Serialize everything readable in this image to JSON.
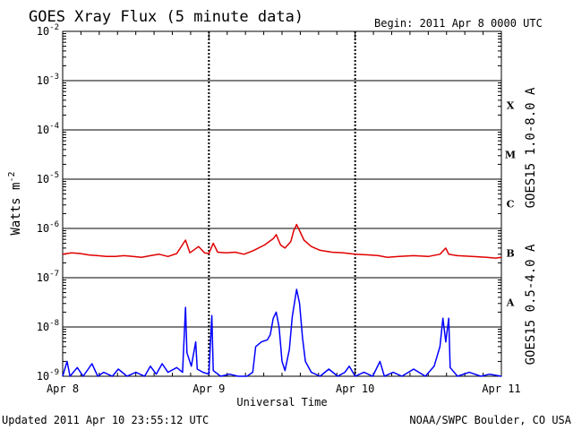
{
  "title": "GOES Xray Flux (5 minute data)",
  "begin": "Begin:  2011 Apr 8 0000 UTC",
  "updated": "Updated 2011 Apr 10 23:55:12 UTC",
  "credit": "NOAA/SWPC Boulder, CO USA",
  "colors": {
    "long": "#e00000",
    "short": "#0000ff",
    "axis": "#000000"
  },
  "chart_data": {
    "type": "line",
    "xlabel": "Universal Time",
    "ylabel": "Watts m",
    "ylabel_superscript": "-2",
    "yscale": "log",
    "ylim": [
      1e-09,
      0.01
    ],
    "xlim": [
      0,
      3
    ],
    "grid": "horizontal lines at each decade; dashed vertical lines at day boundaries",
    "x_ticks": [
      {
        "x": 0,
        "label": "Apr 8"
      },
      {
        "x": 1,
        "label": "Apr 9"
      },
      {
        "x": 2,
        "label": "Apr 10"
      },
      {
        "x": 3,
        "label": "Apr 11"
      }
    ],
    "y_ticks": [
      {
        "exp": -9,
        "label": "10",
        "sup": "-9"
      },
      {
        "exp": -8,
        "label": "10",
        "sup": "-8"
      },
      {
        "exp": -7,
        "label": "10",
        "sup": "-7"
      },
      {
        "exp": -6,
        "label": "10",
        "sup": "-6"
      },
      {
        "exp": -5,
        "label": "10",
        "sup": "-5"
      },
      {
        "exp": -4,
        "label": "10",
        "sup": "-4"
      },
      {
        "exp": -3,
        "label": "10",
        "sup": "-3"
      },
      {
        "exp": -2,
        "label": "10",
        "sup": "-2"
      }
    ],
    "flare_classes": [
      {
        "label": "A",
        "exp": -7.5
      },
      {
        "label": "B",
        "exp": -6.5
      },
      {
        "label": "C",
        "exp": -5.5
      },
      {
        "label": "M",
        "exp": -4.5
      },
      {
        "label": "X",
        "exp": -3.5
      }
    ],
    "legend_placement": "right, vertical",
    "series": [
      {
        "name": "GOES15 1.0-8.0 A",
        "color": "#e00000",
        "points": [
          [
            0.0,
            3e-07
          ],
          [
            0.06,
            3.2e-07
          ],
          [
            0.12,
            3.1e-07
          ],
          [
            0.18,
            2.9e-07
          ],
          [
            0.24,
            2.8e-07
          ],
          [
            0.3,
            2.7e-07
          ],
          [
            0.36,
            2.7e-07
          ],
          [
            0.42,
            2.8e-07
          ],
          [
            0.48,
            2.7e-07
          ],
          [
            0.54,
            2.6e-07
          ],
          [
            0.6,
            2.8e-07
          ],
          [
            0.66,
            3e-07
          ],
          [
            0.72,
            2.7e-07
          ],
          [
            0.78,
            3.1e-07
          ],
          [
            0.84,
            5.8e-07
          ],
          [
            0.87,
            3.2e-07
          ],
          [
            0.93,
            4.3e-07
          ],
          [
            0.97,
            3.2e-07
          ],
          [
            1.0,
            3.1e-07
          ],
          [
            1.03,
            5e-07
          ],
          [
            1.06,
            3.3e-07
          ],
          [
            1.12,
            3.2e-07
          ],
          [
            1.18,
            3.3e-07
          ],
          [
            1.24,
            3e-07
          ],
          [
            1.3,
            3.5e-07
          ],
          [
            1.38,
            4.6e-07
          ],
          [
            1.44,
            6.2e-07
          ],
          [
            1.46,
            7.5e-07
          ],
          [
            1.49,
            4.6e-07
          ],
          [
            1.52,
            4e-07
          ],
          [
            1.56,
            5.4e-07
          ],
          [
            1.58,
            9e-07
          ],
          [
            1.6,
            1.2e-06
          ],
          [
            1.62,
            9e-07
          ],
          [
            1.65,
            5.8e-07
          ],
          [
            1.7,
            4.3e-07
          ],
          [
            1.76,
            3.6e-07
          ],
          [
            1.84,
            3.3e-07
          ],
          [
            1.92,
            3.2e-07
          ],
          [
            2.0,
            3e-07
          ],
          [
            2.1,
            2.9e-07
          ],
          [
            2.16,
            2.8e-07
          ],
          [
            2.22,
            2.6e-07
          ],
          [
            2.3,
            2.7e-07
          ],
          [
            2.4,
            2.8e-07
          ],
          [
            2.5,
            2.7e-07
          ],
          [
            2.58,
            3e-07
          ],
          [
            2.62,
            4e-07
          ],
          [
            2.64,
            3e-07
          ],
          [
            2.7,
            2.8e-07
          ],
          [
            2.8,
            2.7e-07
          ],
          [
            2.9,
            2.6e-07
          ],
          [
            2.96,
            2.5e-07
          ],
          [
            3.0,
            2.6e-07
          ]
        ]
      },
      {
        "name": "GOES15 0.5-4.0 A",
        "color": "#0000ff",
        "points": [
          [
            0.0,
            1e-09
          ],
          [
            0.03,
            2e-09
          ],
          [
            0.05,
            1e-09
          ],
          [
            0.1,
            1.5e-09
          ],
          [
            0.14,
            1e-09
          ],
          [
            0.2,
            1.8e-09
          ],
          [
            0.24,
            1e-09
          ],
          [
            0.28,
            1.2e-09
          ],
          [
            0.34,
            1e-09
          ],
          [
            0.38,
            1.4e-09
          ],
          [
            0.44,
            1e-09
          ],
          [
            0.5,
            1.2e-09
          ],
          [
            0.56,
            1e-09
          ],
          [
            0.6,
            1.6e-09
          ],
          [
            0.64,
            1.1e-09
          ],
          [
            0.68,
            1.8e-09
          ],
          [
            0.72,
            1.2e-09
          ],
          [
            0.78,
            1.5e-09
          ],
          [
            0.82,
            1.2e-09
          ],
          [
            0.84,
            2.5e-08
          ],
          [
            0.85,
            3e-09
          ],
          [
            0.88,
            1.6e-09
          ],
          [
            0.91,
            5e-09
          ],
          [
            0.92,
            1.4e-09
          ],
          [
            0.96,
            1.2e-09
          ],
          [
            1.0,
            1.1e-09
          ],
          [
            1.02,
            1.7e-08
          ],
          [
            1.03,
            1.3e-09
          ],
          [
            1.08,
            1e-09
          ],
          [
            1.14,
            1.1e-09
          ],
          [
            1.2,
            1e-09
          ],
          [
            1.26,
            1e-09
          ],
          [
            1.3,
            1.2e-09
          ],
          [
            1.32,
            4e-09
          ],
          [
            1.36,
            5e-09
          ],
          [
            1.4,
            5.5e-09
          ],
          [
            1.42,
            7e-09
          ],
          [
            1.44,
            1.5e-08
          ],
          [
            1.46,
            2e-08
          ],
          [
            1.48,
            1e-08
          ],
          [
            1.5,
            2e-09
          ],
          [
            1.52,
            1.3e-09
          ],
          [
            1.55,
            3.5e-09
          ],
          [
            1.57,
            1.6e-08
          ],
          [
            1.59,
            3.8e-08
          ],
          [
            1.6,
            5.8e-08
          ],
          [
            1.62,
            3e-08
          ],
          [
            1.64,
            6e-09
          ],
          [
            1.66,
            2e-09
          ],
          [
            1.7,
            1.2e-09
          ],
          [
            1.76,
            1e-09
          ],
          [
            1.82,
            1.4e-09
          ],
          [
            1.88,
            1e-09
          ],
          [
            1.93,
            1.2e-09
          ],
          [
            1.96,
            1.6e-09
          ],
          [
            2.0,
            1e-09
          ],
          [
            2.06,
            1.2e-09
          ],
          [
            2.12,
            1e-09
          ],
          [
            2.17,
            2e-09
          ],
          [
            2.2,
            1e-09
          ],
          [
            2.26,
            1.2e-09
          ],
          [
            2.32,
            1e-09
          ],
          [
            2.4,
            1.4e-09
          ],
          [
            2.48,
            1e-09
          ],
          [
            2.54,
            1.6e-09
          ],
          [
            2.58,
            4e-09
          ],
          [
            2.6,
            1.5e-08
          ],
          [
            2.62,
            5e-09
          ],
          [
            2.64,
            1.5e-08
          ],
          [
            2.65,
            1.5e-09
          ],
          [
            2.7,
            1e-09
          ],
          [
            2.78,
            1.2e-09
          ],
          [
            2.86,
            1e-09
          ],
          [
            2.92,
            1.1e-09
          ],
          [
            3.0,
            1e-09
          ]
        ]
      }
    ]
  }
}
